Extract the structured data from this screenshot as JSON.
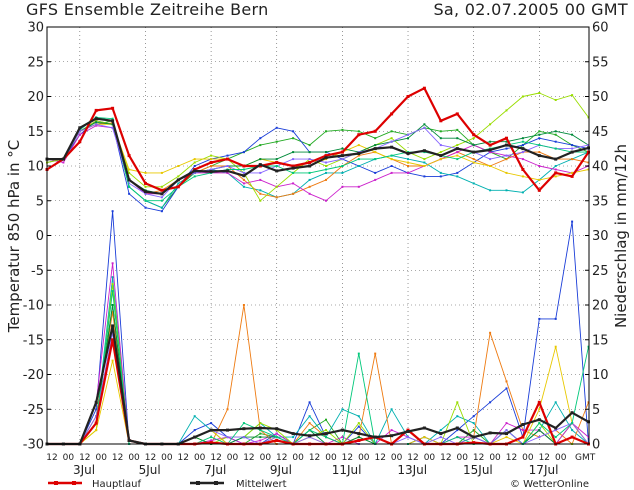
{
  "header": {
    "title": "GFS Ensemble Zeitreihe Bern",
    "date": "Sa, 02.07.2005 00 GMT"
  },
  "footer": {
    "credit": "© WetterOnline"
  },
  "colors": {
    "hauptlauf": "#dd0000",
    "mittelwert": "#222222",
    "grid": "#555555",
    "members": [
      "#22aa22",
      "#1a3dd8",
      "#00b0b0",
      "#ee7a10",
      "#cc22cc",
      "#99dd00",
      "#e8c800",
      "#008a3a",
      "#8866ff",
      "#00c87a"
    ]
  },
  "chart_data": {
    "type": "line",
    "title": "GFS Ensemble Zeitreihe Bern",
    "x_tick_labels": [
      "12",
      "00",
      "12",
      "00",
      "12",
      "00",
      "12",
      "00",
      "12",
      "00",
      "12",
      "00",
      "12",
      "00",
      "12",
      "00",
      "12",
      "00",
      "12",
      "00",
      "12",
      "00",
      "12",
      "00",
      "12",
      "00",
      "12",
      "00",
      "12",
      "00",
      "12",
      "00",
      "GMT"
    ],
    "day_labels": [
      {
        "label": "3Jul",
        "at": "3Jul 00"
      },
      {
        "label": "5Jul",
        "at": "5Jul 00"
      },
      {
        "label": "7Jul",
        "at": "7Jul 00"
      },
      {
        "label": "9Jul",
        "at": "9Jul 00"
      },
      {
        "label": "11Jul",
        "at": "11Jul 00"
      },
      {
        "label": "13Jul",
        "at": "13Jul 00"
      },
      {
        "label": "15Jul",
        "at": "15Jul 00"
      },
      {
        "label": "17Jul",
        "at": "17Jul 00"
      }
    ],
    "x_steps_per_point": "6h from 02.07 00 GMT",
    "ylabel_left": "Temperatur 850 hPa in °C",
    "ylabel_right": "Niederschlag in mm/12h",
    "ylim_left": [
      -30,
      30
    ],
    "ylim_right": [
      0,
      60
    ],
    "yticks_left": [
      -30,
      -25,
      -20,
      -15,
      -10,
      -5,
      0,
      5,
      10,
      15,
      20,
      25,
      30
    ],
    "yticks_right": [
      0,
      5,
      10,
      15,
      20,
      25,
      30,
      35,
      40,
      45,
      50,
      55,
      60
    ],
    "grid": true,
    "legend": "bottom-left",
    "series": [
      {
        "name": "Hauptlauf",
        "axis": "left",
        "color": "#dd0000",
        "values": [
          9.5,
          11,
          13.5,
          18,
          18.3,
          11.5,
          7.5,
          6.5,
          7,
          9.5,
          10.5,
          11,
          10,
          10,
          10.5,
          10,
          10.5,
          11.5,
          12,
          14.5,
          15,
          17.5,
          20,
          21.2,
          16.5,
          17.5,
          14.5,
          13,
          14,
          9.5,
          6.5,
          9,
          8.5,
          12
        ]
      },
      {
        "name": "Mittelwert",
        "axis": "left",
        "color": "#222222",
        "values": [
          11,
          11,
          15.5,
          16.8,
          16.5,
          8,
          6.3,
          6,
          8,
          9.3,
          9.2,
          9.3,
          8.6,
          10.2,
          9.3,
          9.7,
          10,
          11.2,
          11.5,
          11.8,
          12.5,
          12.7,
          11.8,
          12.2,
          11.5,
          12.5,
          12,
          12.3,
          13,
          12.5,
          11.5,
          11,
          12,
          12.6
        ]
      },
      {
        "name": "Hauptlauf Niederschlag",
        "axis": "right",
        "color": "#dd0000",
        "values": [
          0,
          0,
          0,
          3,
          15,
          0.5,
          0,
          0,
          0,
          0,
          0.2,
          0,
          0,
          0,
          0.5,
          0,
          0,
          0,
          0,
          0.5,
          1,
          0,
          2,
          0,
          0,
          0,
          0.2,
          0,
          0,
          1,
          6,
          0,
          1,
          0
        ]
      },
      {
        "name": "Mittelwert Niederschlag",
        "axis": "right",
        "color": "#222222",
        "values": [
          0,
          0,
          0,
          6,
          17,
          0.5,
          0,
          0,
          0,
          1,
          2,
          2,
          2.2,
          2.3,
          2.2,
          1.5,
          1.2,
          1.5,
          2,
          1.5,
          1,
          1.2,
          1.8,
          2.3,
          1.5,
          2.3,
          1,
          1.6,
          1.5,
          2.8,
          3.5,
          2.3,
          4.5,
          3.2
        ]
      }
    ],
    "members": [
      {
        "axis": "left",
        "color": "#22aa22",
        "values": [
          11,
          11,
          15,
          16,
          16.5,
          7,
          5,
          4,
          7,
          9,
          10,
          11,
          12,
          13,
          13.5,
          14,
          13,
          15,
          15.2,
          15,
          14,
          15,
          14.5,
          15.5,
          15,
          15.2,
          13,
          12,
          11,
          13,
          15,
          14.5,
          13,
          12
        ]
      },
      {
        "axis": "left",
        "color": "#1a3dd8",
        "values": [
          10.5,
          11,
          14.5,
          16.5,
          16,
          6,
          4,
          3.5,
          7,
          10,
          11,
          11.5,
          12,
          14,
          15.5,
          15,
          12,
          12,
          11,
          10,
          9,
          10,
          9,
          8.5,
          8.5,
          9,
          10.5,
          12,
          12.5,
          13,
          14,
          13.5,
          13,
          12.5
        ]
      },
      {
        "axis": "left",
        "color": "#00b0b0",
        "values": [
          11,
          11,
          15.2,
          17,
          16.5,
          7,
          5,
          4,
          7.5,
          9,
          9.5,
          9,
          7,
          6.5,
          5.5,
          6,
          8,
          9,
          9,
          10,
          11,
          11.5,
          11,
          10.5,
          9,
          8.5,
          7.5,
          6.5,
          6.5,
          6.2,
          8,
          10,
          11,
          12
        ]
      },
      {
        "axis": "left",
        "color": "#ee7a10",
        "values": [
          11,
          11,
          15,
          16,
          16.2,
          8,
          6,
          6.5,
          8,
          9,
          10,
          10,
          8,
          6,
          5.5,
          6,
          7,
          8,
          10,
          11.5,
          12,
          11,
          10,
          10,
          11,
          12,
          11,
          10,
          11,
          12,
          12,
          11,
          11,
          10.5
        ]
      },
      {
        "axis": "left",
        "color": "#cc22cc",
        "values": [
          11,
          10.5,
          14.5,
          15.8,
          15.5,
          8,
          6,
          6,
          8,
          9,
          9,
          9,
          7.5,
          8,
          7,
          7.5,
          6,
          5,
          7,
          7,
          8,
          9,
          9,
          10,
          11,
          12,
          13,
          12,
          11.5,
          11,
          10,
          9.5,
          9,
          10
        ]
      },
      {
        "axis": "left",
        "color": "#99dd00",
        "values": [
          10.5,
          11,
          15,
          16.5,
          16,
          9,
          7,
          7,
          8.5,
          10.5,
          11.5,
          11,
          9,
          5,
          7,
          9,
          11,
          10,
          11,
          12,
          13,
          14,
          12,
          11,
          12,
          13,
          14,
          16,
          18,
          20,
          20.5,
          19.5,
          20.2,
          17
        ]
      },
      {
        "axis": "left",
        "color": "#e8c800",
        "values": [
          11,
          11,
          15,
          16,
          16,
          9.5,
          9,
          9,
          10,
          11,
          11,
          11,
          10,
          11,
          10.5,
          10,
          10,
          11,
          12,
          13,
          12,
          11,
          10.5,
          10,
          11,
          11.5,
          10.5,
          10,
          9,
          8.5,
          8,
          8.5,
          9,
          9.5
        ]
      },
      {
        "axis": "left",
        "color": "#008a3a",
        "values": [
          11,
          11,
          15,
          16.3,
          16,
          8,
          6.5,
          6,
          8,
          9,
          9.5,
          10,
          10,
          11,
          11,
          12,
          12,
          12,
          12.5,
          12,
          13,
          13.5,
          14,
          16,
          14,
          14,
          13,
          13.5,
          13.5,
          14,
          14.5,
          15,
          14.5,
          13
        ]
      },
      {
        "axis": "left",
        "color": "#8866ff",
        "values": [
          11,
          11,
          15,
          16,
          15.5,
          7.5,
          6,
          5.5,
          8,
          9,
          9.5,
          10,
          9,
          9,
          10,
          11,
          11,
          10.5,
          11,
          12,
          12.5,
          13.5,
          14.5,
          15.5,
          13,
          12.5,
          12,
          11,
          11.5,
          12,
          13,
          12.5,
          12.5,
          13
        ]
      },
      {
        "axis": "left",
        "color": "#00c87a",
        "values": [
          11,
          11,
          15.5,
          17,
          16.8,
          7,
          5,
          5,
          7,
          8.5,
          9,
          9.5,
          9.5,
          10,
          10,
          9,
          9,
          9.5,
          10,
          11,
          11,
          11.5,
          12,
          12,
          11.5,
          11,
          12,
          12.5,
          13,
          13.5,
          13,
          12.5,
          12,
          12
        ]
      },
      {
        "axis": "right",
        "color": "#22aa22",
        "values": [
          0,
          0,
          0,
          4,
          20,
          0,
          0,
          0,
          0,
          0,
          0,
          0,
          0,
          1.5,
          1,
          0,
          2,
          3.5,
          0,
          1,
          0,
          0,
          0,
          1,
          0,
          0,
          2,
          0,
          0,
          0,
          2,
          0,
          3,
          0
        ]
      },
      {
        "axis": "right",
        "color": "#1a3dd8",
        "values": [
          0,
          0,
          0,
          5,
          33.5,
          0,
          0,
          0,
          0,
          2,
          3,
          1,
          0,
          0,
          1.5,
          0,
          6,
          1,
          0,
          2.5,
          0,
          0,
          0,
          1,
          0,
          2,
          4,
          6,
          8,
          1,
          18,
          18,
          32,
          0
        ]
      },
      {
        "axis": "right",
        "color": "#00b0b0",
        "values": [
          0,
          0,
          0,
          3,
          24,
          0,
          0,
          0,
          0,
          4,
          2,
          0,
          1,
          3,
          1,
          1,
          4,
          1,
          5,
          4,
          0,
          5,
          1,
          0,
          2,
          4,
          3,
          0,
          2,
          0,
          2,
          6,
          2,
          0
        ]
      },
      {
        "axis": "right",
        "color": "#ee7a10",
        "values": [
          0,
          0,
          0,
          4,
          19,
          0,
          0,
          0,
          0,
          0,
          0,
          5,
          20,
          2,
          0,
          0,
          3,
          1,
          0,
          1,
          13,
          0,
          0,
          0,
          0,
          0,
          1,
          16,
          9,
          2,
          1,
          2,
          0,
          6
        ]
      },
      {
        "axis": "right",
        "color": "#cc22cc",
        "values": [
          0,
          0,
          0,
          6,
          26,
          0,
          0,
          0,
          0,
          0,
          0.5,
          1,
          0,
          0.5,
          1.5,
          0,
          0,
          0,
          1,
          0,
          0,
          2,
          1,
          0,
          0,
          1,
          1,
          0,
          3,
          2,
          2,
          0,
          3,
          1
        ]
      },
      {
        "axis": "right",
        "color": "#99dd00",
        "values": [
          0,
          0,
          0,
          2,
          23,
          0,
          0,
          0,
          0,
          1,
          0,
          1,
          1,
          3,
          2,
          0,
          1,
          2,
          0,
          3,
          0,
          0,
          0,
          0,
          0,
          6,
          0,
          0,
          0,
          0,
          3,
          0,
          0,
          0
        ]
      },
      {
        "axis": "right",
        "color": "#e8c800",
        "values": [
          0,
          0,
          0,
          2,
          12,
          0,
          0,
          0,
          0,
          1,
          2,
          0,
          0,
          0,
          1,
          0,
          1,
          0,
          0,
          0,
          0,
          0,
          0,
          1,
          0,
          0,
          0,
          0,
          1,
          0,
          5,
          14,
          3,
          0
        ]
      },
      {
        "axis": "right",
        "color": "#008a3a",
        "values": [
          0,
          0,
          0,
          3,
          20,
          0,
          0,
          0,
          0,
          1,
          0,
          0,
          1,
          1,
          1,
          0,
          2,
          0,
          0,
          1,
          0,
          0,
          0,
          0,
          0,
          0,
          1,
          0,
          2,
          0,
          2,
          0,
          1,
          0
        ]
      },
      {
        "axis": "right",
        "color": "#8866ff",
        "values": [
          0,
          0,
          0,
          4,
          16,
          0,
          0,
          0,
          0,
          1,
          2,
          1,
          1,
          0,
          1,
          0,
          1,
          0,
          0,
          0,
          0,
          0,
          1,
          0,
          1,
          0,
          1,
          0,
          2,
          0,
          1,
          2,
          3,
          0
        ]
      },
      {
        "axis": "right",
        "color": "#00c87a",
        "values": [
          0,
          0,
          0,
          3,
          22,
          0,
          0,
          0,
          0,
          0,
          1,
          0,
          3,
          2,
          1,
          0,
          2,
          1,
          0,
          13,
          0,
          0,
          0,
          0,
          0,
          1,
          0,
          0,
          0,
          0,
          3,
          1,
          3,
          14
        ]
      }
    ],
    "legend_entries": [
      {
        "label": "Hauptlauf",
        "color": "#dd0000"
      },
      {
        "label": "Mittelwert",
        "color": "#222222"
      }
    ]
  }
}
